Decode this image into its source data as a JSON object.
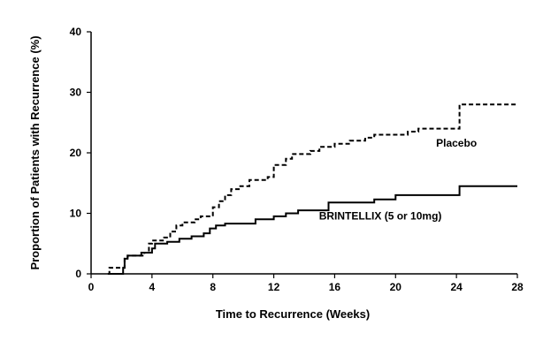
{
  "chart_data": {
    "type": "line",
    "title": "",
    "xlabel": "Time to Recurrence (Weeks)",
    "ylabel": "Proportion of Patients with Recurrence (%)",
    "xlim": [
      0,
      28
    ],
    "ylim": [
      0,
      40
    ],
    "xticks": [
      0,
      4,
      8,
      12,
      16,
      20,
      24,
      28
    ],
    "yticks": [
      0,
      10,
      20,
      30,
      40
    ],
    "grid": false,
    "legend": "inline labels",
    "series": [
      {
        "name": "Placebo",
        "style": "dashed",
        "color": "#000000",
        "step_points": [
          [
            1.1,
            0
          ],
          [
            1.2,
            1
          ],
          [
            2.0,
            1
          ],
          [
            2.2,
            2.5
          ],
          [
            2.4,
            3
          ],
          [
            3.5,
            3.5
          ],
          [
            3.8,
            5
          ],
          [
            4.0,
            5.5
          ],
          [
            4.8,
            6
          ],
          [
            5.2,
            7
          ],
          [
            5.6,
            8
          ],
          [
            6.0,
            8.5
          ],
          [
            6.8,
            9
          ],
          [
            7.2,
            9.5
          ],
          [
            8.0,
            11
          ],
          [
            8.4,
            12
          ],
          [
            8.8,
            13
          ],
          [
            9.2,
            14
          ],
          [
            9.8,
            14.5
          ],
          [
            10.4,
            15.5
          ],
          [
            11.6,
            16
          ],
          [
            12.0,
            18
          ],
          [
            12.8,
            19
          ],
          [
            13.2,
            19.8
          ],
          [
            14.4,
            20.3
          ],
          [
            15.0,
            21
          ],
          [
            16.0,
            21.5
          ],
          [
            17.0,
            22
          ],
          [
            18.0,
            22.5
          ],
          [
            18.6,
            23
          ],
          [
            20.8,
            23.5
          ],
          [
            21.5,
            24
          ],
          [
            24.2,
            28
          ],
          [
            28.0,
            28
          ]
        ],
        "label_at": [
          24,
          21
        ]
      },
      {
        "name": "BRINTELLIX (5 or 10mg)",
        "style": "solid",
        "color": "#000000",
        "step_points": [
          [
            1.2,
            0
          ],
          [
            2.1,
            1
          ],
          [
            2.2,
            2.5
          ],
          [
            2.4,
            3
          ],
          [
            3.0,
            3
          ],
          [
            3.3,
            3.5
          ],
          [
            4.0,
            4.2
          ],
          [
            4.2,
            5
          ],
          [
            5.0,
            5.3
          ],
          [
            5.8,
            5.8
          ],
          [
            6.6,
            6.2
          ],
          [
            7.4,
            6.7
          ],
          [
            7.8,
            7.5
          ],
          [
            8.2,
            8
          ],
          [
            8.8,
            8.3
          ],
          [
            10.8,
            9
          ],
          [
            12.0,
            9.5
          ],
          [
            12.8,
            10
          ],
          [
            13.6,
            10.5
          ],
          [
            15.6,
            11.8
          ],
          [
            18.6,
            12.3
          ],
          [
            20.0,
            13
          ],
          [
            24.2,
            14.5
          ],
          [
            28.0,
            14.5
          ]
        ],
        "label_at": [
          19,
          9
        ]
      }
    ]
  }
}
